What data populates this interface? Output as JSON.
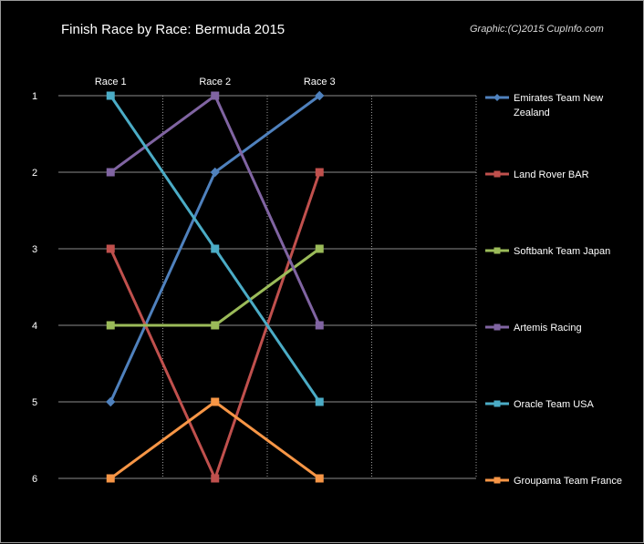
{
  "chart_data": {
    "type": "line",
    "title": "Finish Race by Race: Bermuda 2015",
    "credit": "Graphic:(C)2015 CupInfo.com",
    "categories": [
      "Race 1",
      "Race 2",
      "Race 3"
    ],
    "xlabel": "",
    "ylabel": "",
    "y_ticks": [
      "1",
      "2",
      "3",
      "4",
      "5",
      "6"
    ],
    "ylim": [
      1,
      6
    ],
    "y_reversed": true,
    "legend_position": "right",
    "grid": true,
    "series": [
      {
        "name": "Emirates Team New Zealand",
        "values": [
          5,
          2,
          1
        ],
        "color": "#4f81bd",
        "marker": "diamond"
      },
      {
        "name": "Land Rover BAR",
        "values": [
          3,
          6,
          2
        ],
        "color": "#c0504d",
        "marker": "square"
      },
      {
        "name": "Softbank Team Japan",
        "values": [
          4,
          4,
          3
        ],
        "color": "#9bbb59",
        "marker": "square"
      },
      {
        "name": "Artemis Racing",
        "values": [
          2,
          1,
          4
        ],
        "color": "#8064a2",
        "marker": "square"
      },
      {
        "name": "Oracle Team USA",
        "values": [
          1,
          3,
          5
        ],
        "color": "#4bacc6",
        "marker": "square"
      },
      {
        "name": "Groupama Team France",
        "values": [
          6,
          5,
          6
        ],
        "color": "#f79646",
        "marker": "square"
      }
    ]
  }
}
